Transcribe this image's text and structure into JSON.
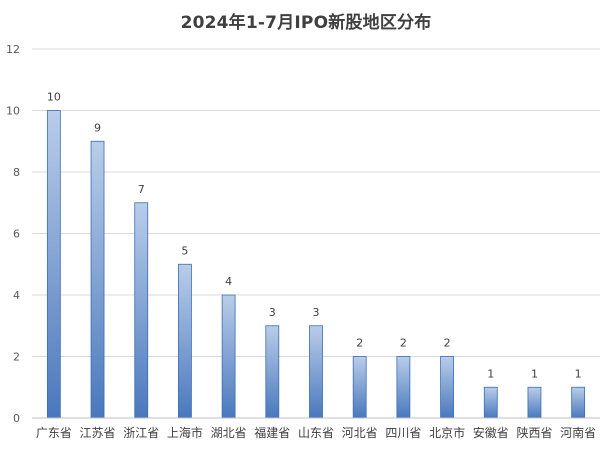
{
  "chart_data": {
    "type": "bar",
    "title": "2024年1-7月IPO新股地区分布",
    "xlabel": "",
    "ylabel": "",
    "categories": [
      "广东省",
      "江苏省",
      "浙江省",
      "上海市",
      "湖北省",
      "福建省",
      "山东省",
      "河北省",
      "四川省",
      "北京市",
      "安徽省",
      "陕西省",
      "河南省"
    ],
    "values": [
      10,
      9,
      7,
      5,
      4,
      3,
      3,
      2,
      2,
      2,
      1,
      1,
      1
    ],
    "ylim": [
      0,
      12
    ],
    "yticks": [
      0,
      2,
      4,
      6,
      8,
      10,
      12
    ],
    "grid": true,
    "data_labels": true,
    "legend": "none",
    "colors": {
      "bar_top": "#b9cde9",
      "bar_bottom": "#4a78bd",
      "bar_border": "#3d6cb3",
      "grid": "#d9d9d9",
      "axis": "#bfbfbf"
    }
  }
}
